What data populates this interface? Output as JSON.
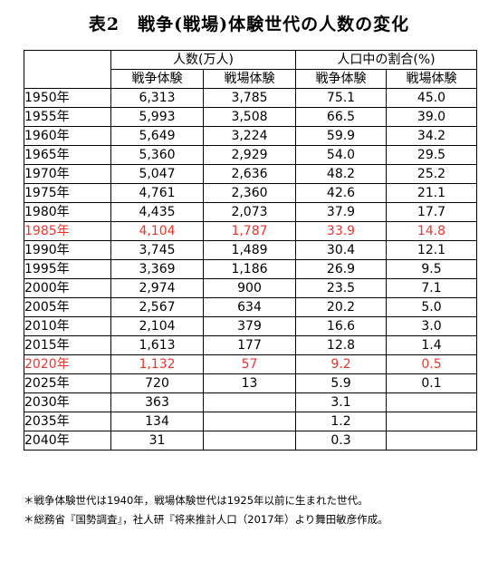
{
  "title": "表2　戦争(戦場)体験世代の人数の変化",
  "headers": {
    "group_people": "人数(万人)",
    "group_ratio": "人口中の割合(%)",
    "war_experience": "戦争体験",
    "battlefield_experience": "戦場体験"
  },
  "rows": [
    {
      "year": "1950年",
      "war_people": "6,313",
      "battle_people": "3,785",
      "war_ratio": "75.1",
      "battle_ratio": "45.0"
    },
    {
      "year": "1955年",
      "war_people": "5,993",
      "battle_people": "3,508",
      "war_ratio": "66.5",
      "battle_ratio": "39.0"
    },
    {
      "year": "1960年",
      "war_people": "5,649",
      "battle_people": "3,224",
      "war_ratio": "59.9",
      "battle_ratio": "34.2"
    },
    {
      "year": "1965年",
      "war_people": "5,360",
      "battle_people": "2,929",
      "war_ratio": "54.0",
      "battle_ratio": "29.5"
    },
    {
      "year": "1970年",
      "war_people": "5,047",
      "battle_people": "2,636",
      "war_ratio": "48.2",
      "battle_ratio": "25.2"
    },
    {
      "year": "1975年",
      "war_people": "4,761",
      "battle_people": "2,360",
      "war_ratio": "42.6",
      "battle_ratio": "21.1"
    },
    {
      "year": "1980年",
      "war_people": "4,435",
      "battle_people": "2,073",
      "war_ratio": "37.9",
      "battle_ratio": "17.7"
    },
    {
      "year": "1985年",
      "war_people": "4,104",
      "battle_people": "1,787",
      "war_ratio": "33.9",
      "battle_ratio": "14.8"
    },
    {
      "year": "1990年",
      "war_people": "3,745",
      "battle_people": "1,489",
      "war_ratio": "30.4",
      "battle_ratio": "12.1"
    },
    {
      "year": "1995年",
      "war_people": "3,369",
      "battle_people": "1,186",
      "war_ratio": "26.9",
      "battle_ratio": "9.5"
    },
    {
      "year": "2000年",
      "war_people": "2,974",
      "battle_people": "900",
      "war_ratio": "23.5",
      "battle_ratio": "7.1"
    },
    {
      "year": "2005年",
      "war_people": "2,567",
      "battle_people": "634",
      "war_ratio": "20.2",
      "battle_ratio": "5.0"
    },
    {
      "year": "2010年",
      "war_people": "2,104",
      "battle_people": "379",
      "war_ratio": "16.6",
      "battle_ratio": "3.0"
    },
    {
      "year": "2015年",
      "war_people": "1,613",
      "battle_people": "177",
      "war_ratio": "12.8",
      "battle_ratio": "1.4"
    },
    {
      "year": "2020年",
      "war_people": "1,132",
      "battle_people": "57",
      "war_ratio": "9.2",
      "battle_ratio": "0.5"
    },
    {
      "year": "2025年",
      "war_people": "720",
      "battle_people": "13",
      "war_ratio": "5.9",
      "battle_ratio": "0.1"
    },
    {
      "year": "2030年",
      "war_people": "363",
      "battle_people": "",
      "war_ratio": "3.1",
      "battle_ratio": ""
    },
    {
      "year": "2035年",
      "war_people": "134",
      "battle_people": "",
      "war_ratio": "1.2",
      "battle_ratio": ""
    },
    {
      "year": "2040年",
      "war_people": "31",
      "battle_people": "",
      "war_ratio": "0.3",
      "battle_ratio": ""
    }
  ],
  "highlight_color": "#e8352f",
  "notes": [
    "＊戦争体験世代は1940年，戦場体験世代は1925年以前に生まれた世代。",
    "＊総務省『国勢調査』，社人研『将来推計人口（2017年）より舞田敏彦作成。"
  ]
}
